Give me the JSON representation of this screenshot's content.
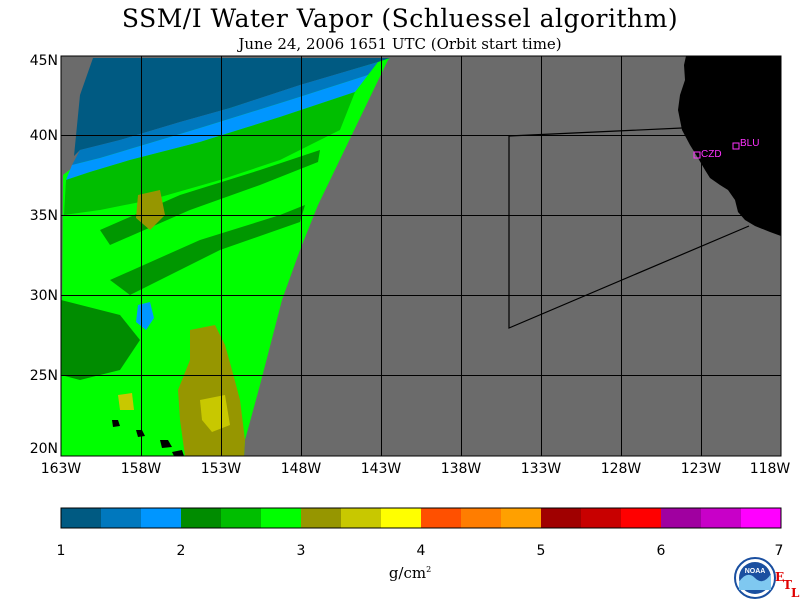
{
  "header": {
    "title": "SSM/I Water Vapor (Schluessel algorithm)",
    "subtitle": "June 24, 2006   1651 UTC  (Orbit start time)"
  },
  "map": {
    "lat_labels": [
      "45N",
      "40N",
      "35N",
      "30N",
      "25N",
      "20N"
    ],
    "lon_labels": [
      "163W",
      "158W",
      "153W",
      "148W",
      "143W",
      "138W",
      "133W",
      "128W",
      "123W",
      "118W"
    ],
    "lat_range": [
      20,
      45
    ],
    "lon_range": [
      -163,
      -118
    ],
    "stations": [
      {
        "id": "CZD",
        "lat": 38.6,
        "lon": -123.2
      },
      {
        "id": "BLU",
        "lat": 39.2,
        "lon": -120.8
      }
    ],
    "colors": {
      "no_data": "#6b6b6b",
      "land": "#000000",
      "station": "#ff33ff"
    }
  },
  "colorbar": {
    "ticks": [
      "1",
      "2",
      "3",
      "4",
      "5",
      "6",
      "7"
    ],
    "units_base": "g/cm",
    "units_exp": "2",
    "colors": [
      "#005a82",
      "#0078be",
      "#0096ff",
      "#008c00",
      "#00be00",
      "#00ff00",
      "#969600",
      "#c8c800",
      "#ffff00",
      "#ff5000",
      "#ff7d00",
      "#ffa000",
      "#a00000",
      "#c80000",
      "#ff0000",
      "#a000a0",
      "#c800c8",
      "#ff00ff"
    ]
  },
  "logo": {
    "text": "NOAA",
    "etl_letters": [
      "E",
      "T",
      "L"
    ]
  }
}
